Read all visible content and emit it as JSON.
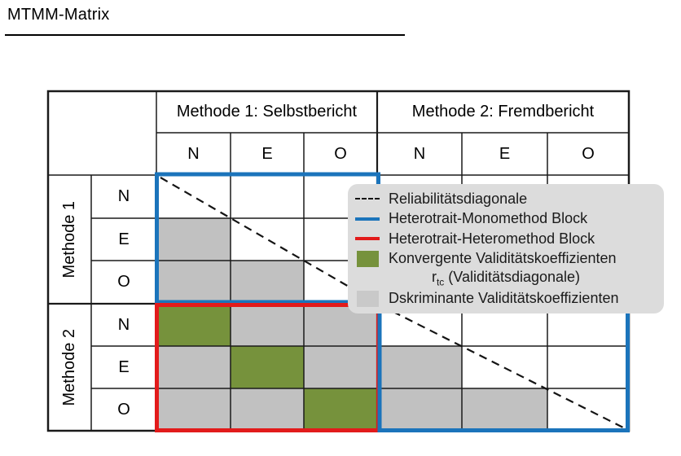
{
  "title": "MTMM-Matrix",
  "table": {
    "method_headers": [
      "Methode 1: Selbstbericht",
      "Methode 2: Fremdbericht"
    ],
    "trait_col_headers": [
      "N",
      "E",
      "O",
      "N",
      "E",
      "O"
    ],
    "row_groups": [
      "Methode 1",
      "Methode 2"
    ],
    "row_traits": [
      "N",
      "E",
      "O",
      "N",
      "E",
      "O"
    ],
    "cells": [
      [
        "w",
        "w",
        "w",
        "w",
        "w",
        "w"
      ],
      [
        "g",
        "w",
        "w",
        "w",
        "w",
        "w"
      ],
      [
        "g",
        "g",
        "w",
        "w",
        "w",
        "w"
      ],
      [
        "v",
        "g",
        "g",
        "w",
        "w",
        "w"
      ],
      [
        "g",
        "v",
        "g",
        "g",
        "w",
        "w"
      ],
      [
        "g",
        "g",
        "v",
        "g",
        "g",
        "w"
      ]
    ],
    "cell_legend": {
      "w": "empty",
      "g": "diskriminante Validitaetskoeffizienten",
      "v": "konvergente Validitaetskoeffizienten"
    }
  },
  "legend": {
    "items": [
      {
        "swatch": "dashed-line",
        "label": "Reliabilitätsdiagonale"
      },
      {
        "swatch": "blue-line",
        "label": "Heterotrait-Monomethod Block"
      },
      {
        "swatch": "red-line",
        "label": "Heterotrait-Heteromethod Block"
      },
      {
        "swatch": "green-square",
        "label": "Konvergente Validitätskoeffizienten"
      },
      {
        "swatch": "none",
        "parts": {
          "prefix": "r",
          "sub": "tc",
          "rest": " (Validitätsdiagonale)"
        }
      },
      {
        "swatch": "gray-square",
        "label": "Dskriminante Validitätskoeffizienten"
      }
    ]
  },
  "colors": {
    "blue": "#1B74BB",
    "red": "#E21B1B",
    "green": "#76923C",
    "gray": "#C1C1C1",
    "legendbg": "#DCDCDC"
  }
}
